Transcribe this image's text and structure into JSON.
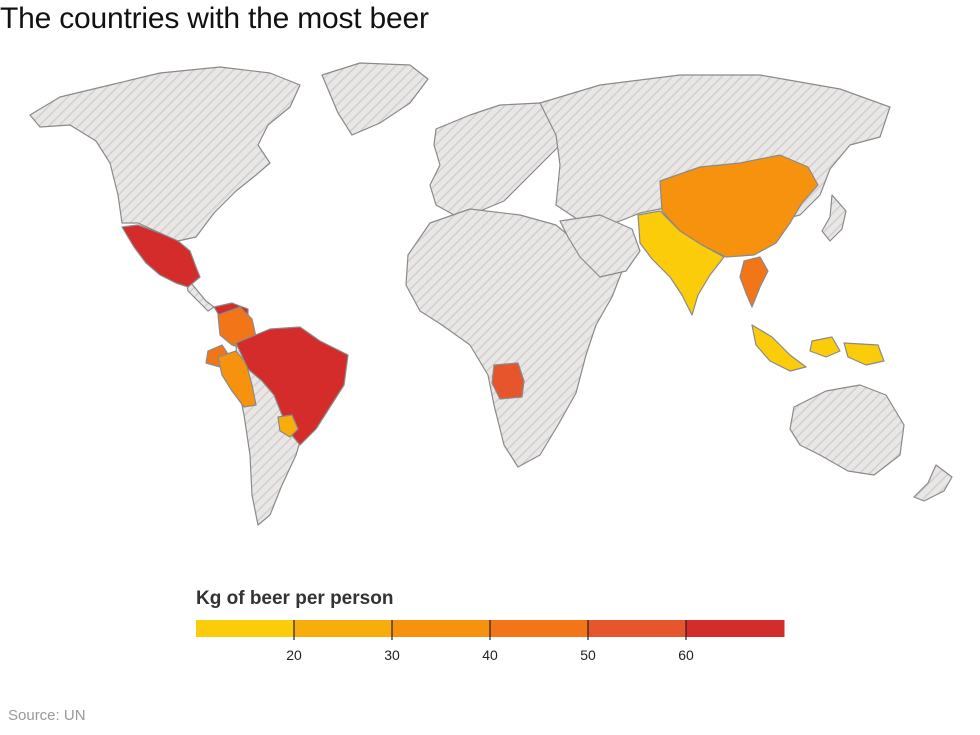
{
  "title": "The countries with the most beer",
  "source": "Source: UN",
  "legend": {
    "title": "Kg of beer per person",
    "ticks": [
      "20",
      "30",
      "40",
      "50",
      "60"
    ],
    "bins": [
      {
        "color": "#fbcc0a"
      },
      {
        "color": "#f9ad0c"
      },
      {
        "color": "#f7920f"
      },
      {
        "color": "#f27518"
      },
      {
        "color": "#e6552b"
      },
      {
        "color": "#d42b2b"
      }
    ]
  },
  "colors": {
    "no_data_fill": "#e9e6e6",
    "no_data_hatch": "#d3cfcf",
    "border": "#8a8a8a"
  },
  "regions": [
    {
      "name": "Mexico",
      "bin": 5
    },
    {
      "name": "Brazil",
      "bin": 5
    },
    {
      "name": "Venezuela",
      "bin": 5
    },
    {
      "name": "Colombia",
      "bin": 3
    },
    {
      "name": "Peru",
      "bin": 2
    },
    {
      "name": "Ecuador",
      "bin": 3
    },
    {
      "name": "Paraguay",
      "bin": 1
    },
    {
      "name": "Angola",
      "bin": 4
    },
    {
      "name": "China",
      "bin": 2
    },
    {
      "name": "Thailand",
      "bin": 3
    },
    {
      "name": "India",
      "bin": 0
    },
    {
      "name": "Indonesia",
      "bin": 0
    }
  ]
}
